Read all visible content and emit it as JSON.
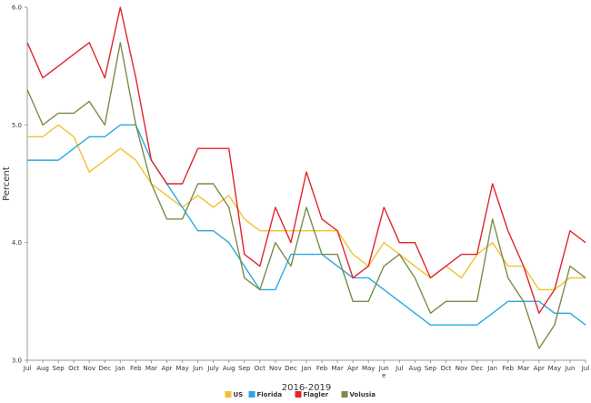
{
  "chart_data": {
    "type": "line",
    "xlabel": "2016-2019",
    "ylabel": "Percent",
    "ylim": [
      3.0,
      6.0
    ],
    "yticks": [
      "3.0",
      "4.0",
      "5.0",
      "6.0"
    ],
    "grid": false,
    "legend_position": "bottom",
    "categories": [
      "Jul",
      "Aug",
      "Sep",
      "Oct",
      "Nov",
      "Dec",
      "Jan",
      "Feb",
      "Mar",
      "Apr",
      "May",
      "Jun",
      "July",
      "Aug",
      "Sep",
      "Oct",
      "Nov",
      "Dec",
      "Jan",
      "Feb",
      "Mar",
      "Apr",
      "May",
      "Jun\ne",
      "Jul",
      "Aug",
      "Sep",
      "Oct",
      "Nov",
      "Dec",
      "Jan",
      "Feb",
      "Mar",
      "Apr",
      "May",
      "Jun",
      "Jul"
    ],
    "series": [
      {
        "name": "US",
        "color": "#f2c12e",
        "values": [
          4.9,
          4.9,
          5.0,
          4.9,
          4.6,
          4.7,
          4.8,
          4.7,
          4.5,
          4.4,
          4.3,
          4.4,
          4.3,
          4.4,
          4.2,
          4.1,
          4.1,
          4.1,
          4.1,
          4.1,
          4.1,
          3.9,
          3.8,
          4.0,
          3.9,
          3.8,
          3.7,
          3.8,
          3.7,
          3.9,
          4.0,
          3.8,
          3.8,
          3.6,
          3.6,
          3.7,
          3.7
        ]
      },
      {
        "name": "Florida",
        "color": "#2aa8e0",
        "values": [
          4.7,
          4.7,
          4.7,
          4.8,
          4.9,
          4.9,
          5.0,
          5.0,
          4.7,
          4.5,
          4.3,
          4.1,
          4.1,
          4.0,
          3.8,
          3.6,
          3.6,
          3.9,
          3.9,
          3.9,
          3.8,
          3.7,
          3.7,
          3.6,
          3.5,
          3.4,
          3.3,
          3.3,
          3.3,
          3.3,
          3.4,
          3.5,
          3.5,
          3.5,
          3.4,
          3.4,
          3.3
        ]
      },
      {
        "name": "Flagler",
        "color": "#e0262b",
        "values": [
          5.7,
          5.4,
          5.5,
          5.6,
          5.7,
          5.4,
          6.0,
          5.4,
          4.7,
          4.5,
          4.5,
          4.8,
          4.8,
          4.8,
          3.9,
          3.8,
          4.3,
          4.0,
          4.6,
          4.2,
          4.1,
          3.7,
          3.8,
          4.3,
          4.0,
          4.0,
          3.7,
          3.8,
          3.9,
          3.9,
          4.5,
          4.1,
          3.8,
          3.4,
          3.6,
          4.1,
          4.0
        ]
      },
      {
        "name": "Volusia",
        "color": "#7b8c47",
        "values": [
          5.3,
          5.0,
          5.1,
          5.1,
          5.2,
          5.0,
          5.7,
          5.0,
          4.5,
          4.2,
          4.2,
          4.5,
          4.5,
          4.3,
          3.7,
          3.6,
          4.0,
          3.8,
          4.3,
          3.9,
          3.9,
          3.5,
          3.5,
          3.8,
          3.9,
          3.7,
          3.4,
          3.5,
          3.5,
          3.5,
          4.2,
          3.7,
          3.5,
          3.1,
          3.3,
          3.8,
          3.7
        ]
      }
    ]
  }
}
